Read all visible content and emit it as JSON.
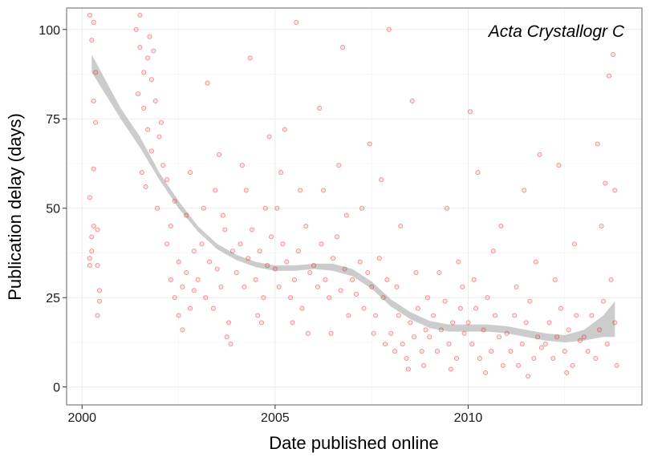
{
  "chart_data": {
    "type": "scatter",
    "title": "",
    "annotation": "Acta Crystallogr C",
    "xlabel": "Date published online",
    "ylabel": "Publication delay (days)",
    "xlim": [
      1999.6,
      2014.5
    ],
    "ylim": [
      -5,
      106
    ],
    "x_ticks": [
      2000,
      2005,
      2010
    ],
    "x_tick_labels": [
      "2000",
      "2005",
      "2010"
    ],
    "y_ticks": [
      0,
      25,
      50,
      75,
      100
    ],
    "y_tick_labels": [
      "0",
      "25",
      "50",
      "75",
      "100"
    ],
    "grid": true,
    "point_color": "#e41a1c",
    "smooth_color": "#999999",
    "smooth_band": [
      {
        "x": 2000.25,
        "lo": 88,
        "hi": 93
      },
      {
        "x": 2000.6,
        "lo": 82,
        "hi": 86
      },
      {
        "x": 2001.0,
        "lo": 75,
        "hi": 78
      },
      {
        "x": 2001.5,
        "lo": 67,
        "hi": 70
      },
      {
        "x": 2002.0,
        "lo": 58,
        "hi": 60
      },
      {
        "x": 2002.5,
        "lo": 50,
        "hi": 52
      },
      {
        "x": 2003.0,
        "lo": 43.5,
        "hi": 45
      },
      {
        "x": 2003.5,
        "lo": 38.5,
        "hi": 40
      },
      {
        "x": 2004.0,
        "lo": 35.5,
        "hi": 37
      },
      {
        "x": 2004.5,
        "lo": 33.5,
        "hi": 35
      },
      {
        "x": 2005.0,
        "lo": 32.5,
        "hi": 34
      },
      {
        "x": 2005.5,
        "lo": 32.5,
        "hi": 34
      },
      {
        "x": 2006.0,
        "lo": 33,
        "hi": 34.5
      },
      {
        "x": 2006.5,
        "lo": 32.5,
        "hi": 34.5
      },
      {
        "x": 2007.0,
        "lo": 31,
        "hi": 33
      },
      {
        "x": 2007.5,
        "lo": 27.5,
        "hi": 29.5
      },
      {
        "x": 2008.0,
        "lo": 22.5,
        "hi": 24.5
      },
      {
        "x": 2008.5,
        "lo": 19,
        "hi": 21
      },
      {
        "x": 2009.0,
        "lo": 16.5,
        "hi": 18.5
      },
      {
        "x": 2009.5,
        "lo": 15.5,
        "hi": 17.5
      },
      {
        "x": 2010.0,
        "lo": 15.5,
        "hi": 17.5
      },
      {
        "x": 2010.5,
        "lo": 15.5,
        "hi": 17.5
      },
      {
        "x": 2011.0,
        "lo": 15,
        "hi": 17
      },
      {
        "x": 2011.5,
        "lo": 14,
        "hi": 16
      },
      {
        "x": 2012.0,
        "lo": 13,
        "hi": 15
      },
      {
        "x": 2012.5,
        "lo": 12.5,
        "hi": 14.5
      },
      {
        "x": 2013.0,
        "lo": 13,
        "hi": 16
      },
      {
        "x": 2013.5,
        "lo": 14,
        "hi": 20
      },
      {
        "x": 2013.8,
        "lo": 14,
        "hi": 24
      }
    ],
    "points": [
      {
        "x": 2000.2,
        "y": 34
      },
      {
        "x": 2000.2,
        "y": 36
      },
      {
        "x": 2000.25,
        "y": 42
      },
      {
        "x": 2000.3,
        "y": 45
      },
      {
        "x": 2000.3,
        "y": 61
      },
      {
        "x": 2000.35,
        "y": 88
      },
      {
        "x": 2000.25,
        "y": 97
      },
      {
        "x": 2000.3,
        "y": 102
      },
      {
        "x": 2000.2,
        "y": 104
      },
      {
        "x": 2000.4,
        "y": 34
      },
      {
        "x": 2000.4,
        "y": 44
      },
      {
        "x": 2000.45,
        "y": 27
      },
      {
        "x": 2000.45,
        "y": 24
      },
      {
        "x": 2000.4,
        "y": 20
      },
      {
        "x": 2000.35,
        "y": 74
      },
      {
        "x": 2000.3,
        "y": 80
      },
      {
        "x": 2000.2,
        "y": 53
      },
      {
        "x": 2000.25,
        "y": 38
      },
      {
        "x": 2001.4,
        "y": 100
      },
      {
        "x": 2001.5,
        "y": 95
      },
      {
        "x": 2001.6,
        "y": 88
      },
      {
        "x": 2001.7,
        "y": 92
      },
      {
        "x": 2001.8,
        "y": 86
      },
      {
        "x": 2001.5,
        "y": 104
      },
      {
        "x": 2001.6,
        "y": 78
      },
      {
        "x": 2001.7,
        "y": 72
      },
      {
        "x": 2001.55,
        "y": 60
      },
      {
        "x": 2001.65,
        "y": 56
      },
      {
        "x": 2001.8,
        "y": 66
      },
      {
        "x": 2001.9,
        "y": 80
      },
      {
        "x": 2002.0,
        "y": 70
      },
      {
        "x": 2002.05,
        "y": 74
      },
      {
        "x": 2001.45,
        "y": 82
      },
      {
        "x": 2001.75,
        "y": 98
      },
      {
        "x": 2001.85,
        "y": 94
      },
      {
        "x": 2002.1,
        "y": 62
      },
      {
        "x": 2002.2,
        "y": 58
      },
      {
        "x": 2001.95,
        "y": 50
      },
      {
        "x": 2002.2,
        "y": 40
      },
      {
        "x": 2002.3,
        "y": 30
      },
      {
        "x": 2002.4,
        "y": 25
      },
      {
        "x": 2002.5,
        "y": 35
      },
      {
        "x": 2002.6,
        "y": 28
      },
      {
        "x": 2002.7,
        "y": 32
      },
      {
        "x": 2002.8,
        "y": 22
      },
      {
        "x": 2002.9,
        "y": 38
      },
      {
        "x": 2002.3,
        "y": 45
      },
      {
        "x": 2002.5,
        "y": 20
      },
      {
        "x": 2002.7,
        "y": 48
      },
      {
        "x": 2002.9,
        "y": 27
      },
      {
        "x": 2002.4,
        "y": 52
      },
      {
        "x": 2002.6,
        "y": 16
      },
      {
        "x": 2002.8,
        "y": 60
      },
      {
        "x": 2003.0,
        "y": 30
      },
      {
        "x": 2003.1,
        "y": 40
      },
      {
        "x": 2003.2,
        "y": 25
      },
      {
        "x": 2003.3,
        "y": 35
      },
      {
        "x": 2003.4,
        "y": 22
      },
      {
        "x": 2003.5,
        "y": 33
      },
      {
        "x": 2003.6,
        "y": 28
      },
      {
        "x": 2003.7,
        "y": 44
      },
      {
        "x": 2003.8,
        "y": 18
      },
      {
        "x": 2003.9,
        "y": 38
      },
      {
        "x": 2003.15,
        "y": 50
      },
      {
        "x": 2003.45,
        "y": 55
      },
      {
        "x": 2003.75,
        "y": 14
      },
      {
        "x": 2003.85,
        "y": 12
      },
      {
        "x": 2003.55,
        "y": 65
      },
      {
        "x": 2003.25,
        "y": 85
      },
      {
        "x": 2003.65,
        "y": 48
      },
      {
        "x": 2004.0,
        "y": 32
      },
      {
        "x": 2004.1,
        "y": 40
      },
      {
        "x": 2004.2,
        "y": 28
      },
      {
        "x": 2004.3,
        "y": 36
      },
      {
        "x": 2004.4,
        "y": 44
      },
      {
        "x": 2004.5,
        "y": 30
      },
      {
        "x": 2004.6,
        "y": 38
      },
      {
        "x": 2004.7,
        "y": 25
      },
      {
        "x": 2004.8,
        "y": 34
      },
      {
        "x": 2004.9,
        "y": 42
      },
      {
        "x": 2004.25,
        "y": 55
      },
      {
        "x": 2004.55,
        "y": 20
      },
      {
        "x": 2004.75,
        "y": 50
      },
      {
        "x": 2004.15,
        "y": 62
      },
      {
        "x": 2004.65,
        "y": 18
      },
      {
        "x": 2004.35,
        "y": 92
      },
      {
        "x": 2004.85,
        "y": 70
      },
      {
        "x": 2005.0,
        "y": 33
      },
      {
        "x": 2005.1,
        "y": 28
      },
      {
        "x": 2005.2,
        "y": 40
      },
      {
        "x": 2005.3,
        "y": 35
      },
      {
        "x": 2005.4,
        "y": 25
      },
      {
        "x": 2005.5,
        "y": 30
      },
      {
        "x": 2005.6,
        "y": 38
      },
      {
        "x": 2005.7,
        "y": 22
      },
      {
        "x": 2005.8,
        "y": 45
      },
      {
        "x": 2005.9,
        "y": 32
      },
      {
        "x": 2005.15,
        "y": 60
      },
      {
        "x": 2005.45,
        "y": 18
      },
      {
        "x": 2005.65,
        "y": 55
      },
      {
        "x": 2005.25,
        "y": 72
      },
      {
        "x": 2005.85,
        "y": 15
      },
      {
        "x": 2005.55,
        "y": 102
      },
      {
        "x": 2005.05,
        "y": 50
      },
      {
        "x": 2006.0,
        "y": 34
      },
      {
        "x": 2006.1,
        "y": 28
      },
      {
        "x": 2006.2,
        "y": 40
      },
      {
        "x": 2006.3,
        "y": 30
      },
      {
        "x": 2006.4,
        "y": 25
      },
      {
        "x": 2006.5,
        "y": 36
      },
      {
        "x": 2006.6,
        "y": 42
      },
      {
        "x": 2006.7,
        "y": 27
      },
      {
        "x": 2006.8,
        "y": 33
      },
      {
        "x": 2006.9,
        "y": 20
      },
      {
        "x": 2006.25,
        "y": 55
      },
      {
        "x": 2006.45,
        "y": 15
      },
      {
        "x": 2006.65,
        "y": 62
      },
      {
        "x": 2006.85,
        "y": 48
      },
      {
        "x": 2006.15,
        "y": 78
      },
      {
        "x": 2006.75,
        "y": 95
      },
      {
        "x": 2007.0,
        "y": 30
      },
      {
        "x": 2007.1,
        "y": 26
      },
      {
        "x": 2007.2,
        "y": 35
      },
      {
        "x": 2007.3,
        "y": 22
      },
      {
        "x": 2007.4,
        "y": 32
      },
      {
        "x": 2007.5,
        "y": 28
      },
      {
        "x": 2007.6,
        "y": 20
      },
      {
        "x": 2007.7,
        "y": 36
      },
      {
        "x": 2007.8,
        "y": 25
      },
      {
        "x": 2007.9,
        "y": 30
      },
      {
        "x": 2007.25,
        "y": 50
      },
      {
        "x": 2007.55,
        "y": 15
      },
      {
        "x": 2007.75,
        "y": 58
      },
      {
        "x": 2007.85,
        "y": 12
      },
      {
        "x": 2007.45,
        "y": 68
      },
      {
        "x": 2007.95,
        "y": 100
      },
      {
        "x": 2008.0,
        "y": 15
      },
      {
        "x": 2008.1,
        "y": 10
      },
      {
        "x": 2008.2,
        "y": 20
      },
      {
        "x": 2008.3,
        "y": 12
      },
      {
        "x": 2008.4,
        "y": 8
      },
      {
        "x": 2008.5,
        "y": 18
      },
      {
        "x": 2008.6,
        "y": 14
      },
      {
        "x": 2008.7,
        "y": 22
      },
      {
        "x": 2008.8,
        "y": 10
      },
      {
        "x": 2008.9,
        "y": 16
      },
      {
        "x": 2008.15,
        "y": 28
      },
      {
        "x": 2008.45,
        "y": 5
      },
      {
        "x": 2008.65,
        "y": 32
      },
      {
        "x": 2008.85,
        "y": 6
      },
      {
        "x": 2008.25,
        "y": 45
      },
      {
        "x": 2008.55,
        "y": 80
      },
      {
        "x": 2008.95,
        "y": 25
      },
      {
        "x": 2009.0,
        "y": 14
      },
      {
        "x": 2009.1,
        "y": 20
      },
      {
        "x": 2009.2,
        "y": 10
      },
      {
        "x": 2009.3,
        "y": 16
      },
      {
        "x": 2009.4,
        "y": 24
      },
      {
        "x": 2009.5,
        "y": 12
      },
      {
        "x": 2009.6,
        "y": 18
      },
      {
        "x": 2009.7,
        "y": 8
      },
      {
        "x": 2009.8,
        "y": 22
      },
      {
        "x": 2009.9,
        "y": 15
      },
      {
        "x": 2009.25,
        "y": 32
      },
      {
        "x": 2009.55,
        "y": 5
      },
      {
        "x": 2009.75,
        "y": 35
      },
      {
        "x": 2009.45,
        "y": 50
      },
      {
        "x": 2009.85,
        "y": 28
      },
      {
        "x": 2010.0,
        "y": 18
      },
      {
        "x": 2010.1,
        "y": 12
      },
      {
        "x": 2010.2,
        "y": 22
      },
      {
        "x": 2010.3,
        "y": 8
      },
      {
        "x": 2010.4,
        "y": 16
      },
      {
        "x": 2010.5,
        "y": 25
      },
      {
        "x": 2010.6,
        "y": 10
      },
      {
        "x": 2010.7,
        "y": 20
      },
      {
        "x": 2010.8,
        "y": 14
      },
      {
        "x": 2010.9,
        "y": 6
      },
      {
        "x": 2010.15,
        "y": 30
      },
      {
        "x": 2010.45,
        "y": 4
      },
      {
        "x": 2010.65,
        "y": 38
      },
      {
        "x": 2010.25,
        "y": 60
      },
      {
        "x": 2010.85,
        "y": 45
      },
      {
        "x": 2010.05,
        "y": 77
      },
      {
        "x": 2011.0,
        "y": 15
      },
      {
        "x": 2011.1,
        "y": 10
      },
      {
        "x": 2011.2,
        "y": 20
      },
      {
        "x": 2011.3,
        "y": 6
      },
      {
        "x": 2011.4,
        "y": 12
      },
      {
        "x": 2011.5,
        "y": 18
      },
      {
        "x": 2011.6,
        "y": 24
      },
      {
        "x": 2011.7,
        "y": 8
      },
      {
        "x": 2011.8,
        "y": 14
      },
      {
        "x": 2011.9,
        "y": 11
      },
      {
        "x": 2011.25,
        "y": 28
      },
      {
        "x": 2011.55,
        "y": 3
      },
      {
        "x": 2011.75,
        "y": 35
      },
      {
        "x": 2011.45,
        "y": 55
      },
      {
        "x": 2011.85,
        "y": 65
      },
      {
        "x": 2012.0,
        "y": 12
      },
      {
        "x": 2012.1,
        "y": 18
      },
      {
        "x": 2012.2,
        "y": 8
      },
      {
        "x": 2012.3,
        "y": 14
      },
      {
        "x": 2012.4,
        "y": 22
      },
      {
        "x": 2012.5,
        "y": 10
      },
      {
        "x": 2012.6,
        "y": 16
      },
      {
        "x": 2012.7,
        "y": 6
      },
      {
        "x": 2012.8,
        "y": 20
      },
      {
        "x": 2012.9,
        "y": 13
      },
      {
        "x": 2012.25,
        "y": 30
      },
      {
        "x": 2012.55,
        "y": 4
      },
      {
        "x": 2012.75,
        "y": 40
      },
      {
        "x": 2012.35,
        "y": 62
      },
      {
        "x": 2013.0,
        "y": 14
      },
      {
        "x": 2013.1,
        "y": 10
      },
      {
        "x": 2013.2,
        "y": 20
      },
      {
        "x": 2013.3,
        "y": 8
      },
      {
        "x": 2013.4,
        "y": 16
      },
      {
        "x": 2013.5,
        "y": 24
      },
      {
        "x": 2013.6,
        "y": 12
      },
      {
        "x": 2013.7,
        "y": 30
      },
      {
        "x": 2013.8,
        "y": 18
      },
      {
        "x": 2013.85,
        "y": 6
      },
      {
        "x": 2013.45,
        "y": 45
      },
      {
        "x": 2013.55,
        "y": 57
      },
      {
        "x": 2013.65,
        "y": 87
      },
      {
        "x": 2013.75,
        "y": 93
      },
      {
        "x": 2013.8,
        "y": 55
      },
      {
        "x": 2013.35,
        "y": 68
      }
    ]
  }
}
